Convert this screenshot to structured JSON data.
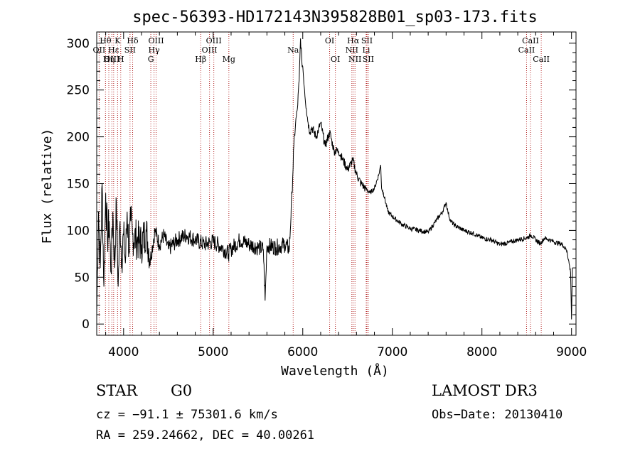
{
  "chart_data": {
    "type": "line",
    "title": "spec-56393-HD172143N395828B01_sp03-173.fits",
    "xlabel": "Wavelength (Å)",
    "ylabel": "Flux (relative)",
    "xlim": [
      3700,
      9050
    ],
    "ylim": [
      -12,
      312
    ],
    "xticks": [
      4000,
      5000,
      6000,
      7000,
      8000,
      9000
    ],
    "yticks": [
      0,
      50,
      100,
      150,
      200,
      250,
      300
    ],
    "series": [
      {
        "name": "spectrum",
        "x": [
          3700,
          3720,
          3740,
          3760,
          3780,
          3800,
          3820,
          3840,
          3860,
          3880,
          3900,
          3920,
          3940,
          3960,
          3980,
          4000,
          4020,
          4040,
          4060,
          4080,
          4100,
          4150,
          4200,
          4250,
          4300,
          4350,
          4400,
          4450,
          4500,
          4600,
          4700,
          4800,
          4900,
          5000,
          5100,
          5170,
          5200,
          5300,
          5400,
          5500,
          5560,
          5580,
          5600,
          5700,
          5800,
          5850,
          5880,
          5900,
          5920,
          5940,
          5960,
          5975,
          5990,
          6000,
          6020,
          6040,
          6060,
          6080,
          6100,
          6150,
          6200,
          6250,
          6300,
          6350,
          6400,
          6450,
          6500,
          6560,
          6600,
          6650,
          6700,
          6750,
          6800,
          6850,
          6870,
          6880,
          6900,
          6950,
          7000,
          7100,
          7200,
          7300,
          7400,
          7500,
          7560,
          7600,
          7620,
          7650,
          7700,
          7800,
          7900,
          8000,
          8100,
          8200,
          8300,
          8400,
          8500,
          8550,
          8600,
          8650,
          8700,
          8800,
          8900,
          8950,
          8990,
          9000,
          9010
        ],
        "y": [
          10,
          120,
          60,
          150,
          40,
          140,
          90,
          110,
          55,
          120,
          60,
          130,
          40,
          110,
          70,
          95,
          65,
          120,
          80,
          110,
          95,
          90,
          85,
          100,
          70,
          100,
          85,
          95,
          80,
          90,
          95,
          90,
          85,
          88,
          82,
          75,
          80,
          90,
          85,
          82,
          80,
          25,
          84,
          82,
          85,
          80,
          140,
          190,
          215,
          230,
          260,
          305,
          280,
          275,
          250,
          230,
          215,
          205,
          210,
          200,
          215,
          190,
          205,
          185,
          185,
          175,
          165,
          175,
          160,
          150,
          145,
          140,
          145,
          160,
          170,
          145,
          140,
          120,
          115,
          107,
          102,
          100,
          98,
          112,
          120,
          130,
          120,
          110,
          105,
          100,
          97,
          92,
          90,
          85,
          87,
          90,
          92,
          95,
          90,
          86,
          92,
          88,
          85,
          78,
          55,
          5,
          60
        ]
      }
    ],
    "annotations": {
      "line_marks": [
        {
          "label": "Hθ",
          "wl": 3798,
          "row": 0
        },
        {
          "label": "OII",
          "wl": 3727,
          "row": 1
        },
        {
          "label": "OIII",
          "wl": 3869,
          "row": 2
        },
        {
          "label": "Hη",
          "wl": 3835,
          "row": 2
        },
        {
          "label": "Hε",
          "wl": 3889,
          "row": 1
        },
        {
          "label": "K",
          "wl": 3933,
          "row": 0
        },
        {
          "label": "H",
          "wl": 3968,
          "row": 2
        },
        {
          "label": "Hδ",
          "wl": 4101,
          "row": 0
        },
        {
          "label": "SII",
          "wl": 4072,
          "row": 1
        },
        {
          "label": "OIII",
          "wl": 4363,
          "row": 0
        },
        {
          "label": "Hγ",
          "wl": 4340,
          "row": 1
        },
        {
          "label": "G",
          "wl": 4304,
          "row": 2
        },
        {
          "label": "OIII",
          "wl": 5007,
          "row": 0
        },
        {
          "label": "OIII",
          "wl": 4959,
          "row": 1
        },
        {
          "label": "Hβ",
          "wl": 4861,
          "row": 2
        },
        {
          "label": "Mg",
          "wl": 5175,
          "row": 2
        },
        {
          "label": "Na",
          "wl": 5893,
          "row": 1
        },
        {
          "label": "OI",
          "wl": 6300,
          "row": 0
        },
        {
          "label": "OI",
          "wl": 6364,
          "row": 2
        },
        {
          "label": "Hα",
          "wl": 6563,
          "row": 0
        },
        {
          "label": "NII",
          "wl": 6548,
          "row": 1
        },
        {
          "label": "NII",
          "wl": 6583,
          "row": 2
        },
        {
          "label": "SII",
          "wl": 6716,
          "row": 0
        },
        {
          "label": "Li",
          "wl": 6708,
          "row": 1
        },
        {
          "label": "SII",
          "wl": 6731,
          "row": 2
        },
        {
          "label": "CaII",
          "wl": 8542,
          "row": 0
        },
        {
          "label": "CaII",
          "wl": 8498,
          "row": 1
        },
        {
          "label": "CaII",
          "wl": 8662,
          "row": 2
        }
      ]
    }
  },
  "info": {
    "object_class": "STAR",
    "subclass": "G0",
    "survey": "LAMOST DR3",
    "cz_text": "cz = −91.1 ± 75301.6 km/s",
    "obs_date_text": "Obs−Date: 20130410",
    "radec_text": "RA = 259.24662, DEC =  40.00261"
  },
  "colors": {
    "line": "#000000",
    "marker": "#b22222",
    "axis": "#000000"
  }
}
